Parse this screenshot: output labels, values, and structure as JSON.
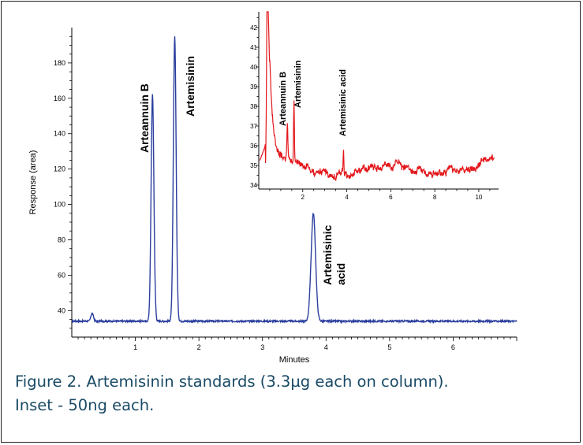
{
  "chart_data": [
    {
      "type": "line",
      "title": "",
      "xlabel": "Minutes",
      "ylabel": "Response (area)",
      "xlim": [
        0,
        7.0
      ],
      "ylim": [
        25,
        200
      ],
      "xticks": [
        1,
        2,
        3,
        4,
        5,
        6
      ],
      "yticks": [
        40,
        60,
        80,
        100,
        120,
        140,
        160,
        180
      ],
      "baseline": 34,
      "color": "#2b3f9e",
      "peaks": [
        {
          "name": "Arteannuin B",
          "x": 1.27,
          "height": 162,
          "width": 0.022
        },
        {
          "name": "Artemisinin",
          "x": 1.62,
          "height": 195,
          "width": 0.022
        },
        {
          "name": "Artemisinic acid",
          "x": 3.8,
          "height": 95,
          "width": 0.035
        }
      ],
      "minor_peaks": [
        {
          "x": 0.32,
          "height": 38.5
        }
      ],
      "annotations": [
        {
          "lines": [
            "Arteannuin B"
          ]
        },
        {
          "lines": [
            "Artemisinin"
          ]
        },
        {
          "lines": [
            "Artemisinic",
            "acid"
          ]
        }
      ]
    },
    {
      "type": "line",
      "title": "",
      "xlabel": "",
      "ylabel": "",
      "xlim": [
        0,
        10.9
      ],
      "ylim": [
        33.8,
        42.8
      ],
      "xticks": [
        2,
        4,
        6,
        8,
        10
      ],
      "yticks": [
        34,
        35,
        36,
        37,
        38,
        39,
        40,
        41,
        42
      ],
      "baseline": 34.8,
      "color": "#e3161b",
      "peaks": [
        {
          "name": "Arteannuin B",
          "x": 1.3,
          "height": 36.5
        },
        {
          "name": "Artemisinin",
          "x": 1.6,
          "height": 38
        },
        {
          "name": "Artemisinic acid",
          "x": 3.85,
          "height": 36
        }
      ],
      "annotations": [
        {
          "lines": [
            "Arteannuin B"
          ]
        },
        {
          "lines": [
            "Artemisinin"
          ]
        },
        {
          "lines": [
            "Artemisinic acid"
          ]
        }
      ]
    }
  ],
  "caption": {
    "line1": "Figure 2. Artemisinin standards (3.3µg each on column).",
    "line2": "Inset - 50ng each."
  }
}
